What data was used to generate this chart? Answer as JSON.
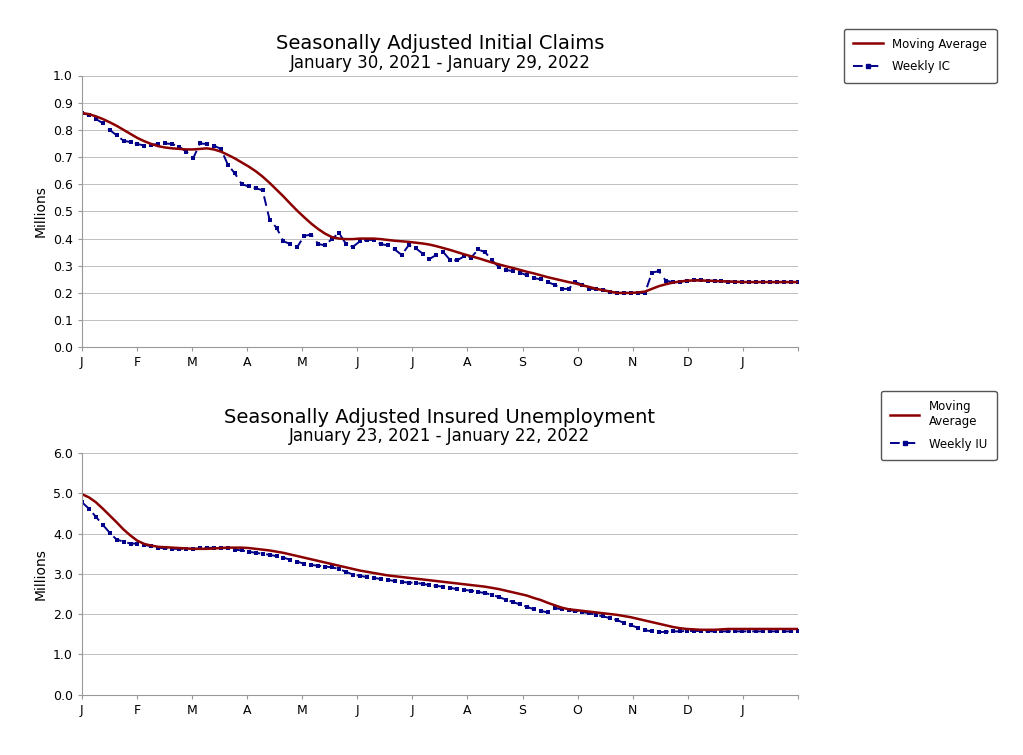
{
  "title1": "Seasonally Adjusted Initial Claims",
  "subtitle1": "January 30, 2021 - January 29, 2022",
  "title2": "Seasonally Adjusted Insured Unemployment",
  "subtitle2": "January 23, 2021 - January 22, 2022",
  "ylabel": "Millions",
  "moving_avg_color": "#8B0000",
  "weekly_color": "#00008B",
  "background_color": "#ffffff",
  "grid_color": "#c0c0c0",
  "ic_moving_avg": [
    0.862,
    0.858,
    0.85,
    0.84,
    0.828,
    0.815,
    0.8,
    0.785,
    0.77,
    0.758,
    0.748,
    0.74,
    0.735,
    0.732,
    0.73,
    0.728,
    0.728,
    0.73,
    0.732,
    0.728,
    0.72,
    0.708,
    0.695,
    0.68,
    0.665,
    0.648,
    0.628,
    0.605,
    0.58,
    0.555,
    0.528,
    0.502,
    0.478,
    0.455,
    0.435,
    0.418,
    0.405,
    0.4,
    0.398,
    0.398,
    0.4,
    0.4,
    0.4,
    0.398,
    0.395,
    0.392,
    0.39,
    0.388,
    0.385,
    0.382,
    0.378,
    0.372,
    0.365,
    0.358,
    0.35,
    0.342,
    0.335,
    0.328,
    0.32,
    0.312,
    0.305,
    0.298,
    0.292,
    0.285,
    0.278,
    0.272,
    0.265,
    0.258,
    0.252,
    0.246,
    0.24,
    0.235,
    0.228,
    0.222,
    0.215,
    0.21,
    0.205,
    0.2,
    0.2,
    0.2,
    0.202,
    0.205,
    0.215,
    0.225,
    0.232,
    0.238,
    0.242,
    0.245,
    0.246,
    0.246,
    0.245,
    0.244,
    0.243,
    0.242,
    0.241,
    0.24,
    0.24,
    0.24,
    0.24,
    0.24,
    0.24,
    0.24,
    0.24,
    0.24
  ],
  "ic_weekly": [
    0.862,
    0.855,
    0.84,
    0.825,
    0.8,
    0.78,
    0.76,
    0.755,
    0.748,
    0.742,
    0.745,
    0.748,
    0.75,
    0.748,
    0.738,
    0.72,
    0.695,
    0.75,
    0.748,
    0.742,
    0.73,
    0.672,
    0.64,
    0.6,
    0.592,
    0.585,
    0.578,
    0.47,
    0.44,
    0.39,
    0.38,
    0.37,
    0.41,
    0.415,
    0.38,
    0.375,
    0.4,
    0.42,
    0.38,
    0.37,
    0.39,
    0.395,
    0.395,
    0.38,
    0.375,
    0.36,
    0.34,
    0.375,
    0.365,
    0.345,
    0.325,
    0.34,
    0.35,
    0.32,
    0.32,
    0.335,
    0.33,
    0.36,
    0.35,
    0.32,
    0.295,
    0.285,
    0.28,
    0.275,
    0.265,
    0.255,
    0.25,
    0.24,
    0.23,
    0.215,
    0.215,
    0.24,
    0.23,
    0.215,
    0.215,
    0.21,
    0.205,
    0.2,
    0.2,
    0.2,
    0.2,
    0.2,
    0.275,
    0.28,
    0.245,
    0.24,
    0.242,
    0.244,
    0.248,
    0.248,
    0.245,
    0.244,
    0.243,
    0.242,
    0.241,
    0.24,
    0.24,
    0.24,
    0.24,
    0.24,
    0.24,
    0.24,
    0.24,
    0.24
  ],
  "iu_moving_avg": [
    4.98,
    4.9,
    4.78,
    4.62,
    4.45,
    4.28,
    4.1,
    3.95,
    3.82,
    3.74,
    3.7,
    3.67,
    3.66,
    3.65,
    3.64,
    3.63,
    3.62,
    3.62,
    3.62,
    3.63,
    3.64,
    3.65,
    3.65,
    3.65,
    3.64,
    3.62,
    3.6,
    3.58,
    3.55,
    3.52,
    3.48,
    3.44,
    3.4,
    3.36,
    3.32,
    3.28,
    3.24,
    3.2,
    3.16,
    3.12,
    3.08,
    3.05,
    3.02,
    2.99,
    2.96,
    2.94,
    2.92,
    2.9,
    2.88,
    2.86,
    2.84,
    2.82,
    2.8,
    2.78,
    2.76,
    2.74,
    2.72,
    2.7,
    2.68,
    2.65,
    2.62,
    2.58,
    2.54,
    2.5,
    2.46,
    2.4,
    2.35,
    2.28,
    2.22,
    2.16,
    2.12,
    2.1,
    2.08,
    2.06,
    2.04,
    2.02,
    2.0,
    1.98,
    1.95,
    1.92,
    1.88,
    1.84,
    1.8,
    1.76,
    1.72,
    1.68,
    1.65,
    1.63,
    1.62,
    1.61,
    1.61,
    1.61,
    1.62,
    1.63,
    1.63,
    1.63,
    1.63,
    1.63,
    1.63,
    1.63,
    1.63,
    1.63,
    1.63,
    1.63
  ],
  "iu_weekly": [
    4.78,
    4.62,
    4.42,
    4.22,
    4.02,
    3.85,
    3.8,
    3.75,
    3.75,
    3.72,
    3.68,
    3.65,
    3.63,
    3.62,
    3.62,
    3.62,
    3.62,
    3.63,
    3.64,
    3.65,
    3.65,
    3.63,
    3.6,
    3.58,
    3.55,
    3.52,
    3.5,
    3.47,
    3.44,
    3.4,
    3.35,
    3.3,
    3.25,
    3.22,
    3.2,
    3.18,
    3.16,
    3.12,
    3.05,
    2.98,
    2.95,
    2.92,
    2.9,
    2.87,
    2.85,
    2.82,
    2.8,
    2.78,
    2.78,
    2.75,
    2.72,
    2.7,
    2.68,
    2.65,
    2.62,
    2.6,
    2.58,
    2.55,
    2.52,
    2.48,
    2.42,
    2.36,
    2.3,
    2.24,
    2.18,
    2.12,
    2.08,
    2.04,
    2.15,
    2.12,
    2.1,
    2.08,
    2.05,
    2.02,
    1.98,
    1.94,
    1.9,
    1.85,
    1.78,
    1.72,
    1.66,
    1.6,
    1.57,
    1.55,
    1.56,
    1.57,
    1.57,
    1.58,
    1.58,
    1.58,
    1.57,
    1.57,
    1.57,
    1.57,
    1.57,
    1.57,
    1.57,
    1.57,
    1.57,
    1.57,
    1.57,
    1.57,
    1.57,
    1.57
  ],
  "ic_ylim": [
    0.0,
    1.0
  ],
  "ic_yticks": [
    0.0,
    0.1,
    0.2,
    0.3,
    0.4,
    0.5,
    0.6,
    0.7,
    0.8,
    0.9,
    1.0
  ],
  "iu_ylim": [
    0.0,
    6.0
  ],
  "iu_yticks": [
    0.0,
    1.0,
    2.0,
    3.0,
    4.0,
    5.0,
    6.0
  ],
  "n_points": 104,
  "tick_labels": [
    "J",
    "F",
    "M",
    "A",
    "M",
    "J",
    "J",
    "A",
    "S",
    "O",
    "N",
    "D",
    "J",
    ""
  ],
  "title_fontsize": 14,
  "subtitle_fontsize": 12,
  "legend1_label1": "Moving Average",
  "legend1_label2": "Weekly IC",
  "legend2_label1": "Moving\nAverage",
  "legend2_label2": "Weekly IU"
}
